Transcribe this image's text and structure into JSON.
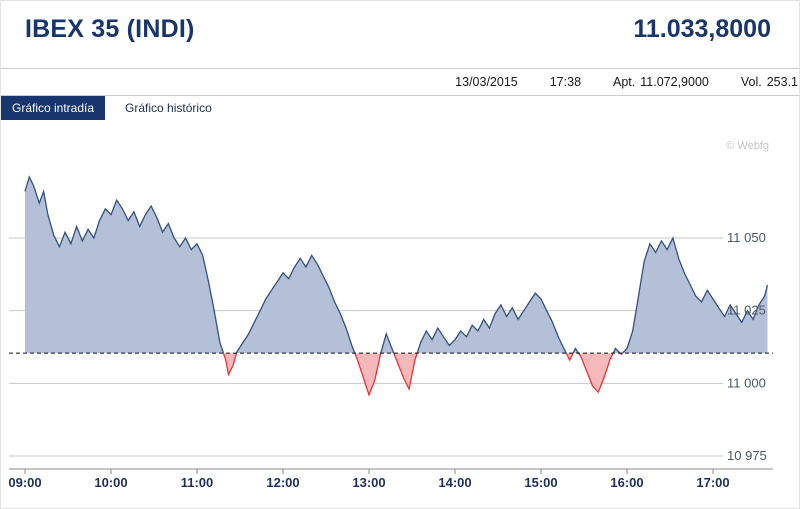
{
  "header": {
    "title": "IBEX 35 (INDI)",
    "last_price": "11.033,8000"
  },
  "info_bar": {
    "date": "13/03/2015",
    "time": "17:38",
    "open_label": "Apt.",
    "open_value": "11.072,9000",
    "volume_label": "Vol.",
    "volume_value": "253.1"
  },
  "tabs": [
    {
      "label": "Gráfico intradía",
      "active": true
    },
    {
      "label": "Gráfico histórico",
      "active": false
    }
  ],
  "watermark": "© Webfg",
  "chart_data": {
    "type": "area",
    "title": "",
    "xlabel": "",
    "ylabel": "",
    "x_range": [
      "09:00",
      "17:38"
    ],
    "ylim": [
      10965,
      11080
    ],
    "grid": true,
    "x_tick_labels": [
      "09:00",
      "10:00",
      "11:00",
      "12:00",
      "13:00",
      "14:00",
      "15:00",
      "16:00",
      "17:00"
    ],
    "y_ticks": [
      {
        "value": 11050,
        "label": "11 050"
      },
      {
        "value": 11025,
        "label": "11 025"
      },
      {
        "value": 11000,
        "label": "11 000"
      },
      {
        "value": 10975,
        "label": "10 975"
      }
    ],
    "baseline_previous_close": 11010.4,
    "colors": {
      "accent": "#17366e",
      "area_fill": "#b3c0d8",
      "area_stroke": "#33507e",
      "negative_fill": "#f6b9bb",
      "negative_stroke": "#e23535",
      "grid": "#c9c9c9",
      "baseline": "#111111",
      "axis": "#8a8a8a",
      "y_label": "#4d5766",
      "x_label": "#1d2f5f"
    },
    "series": [
      {
        "name": "IBEX 35",
        "points": [
          [
            "09:00",
            11066
          ],
          [
            "09:03",
            11071
          ],
          [
            "09:06",
            11068
          ],
          [
            "09:10",
            11062
          ],
          [
            "09:13",
            11066
          ],
          [
            "09:16",
            11058
          ],
          [
            "09:20",
            11051
          ],
          [
            "09:24",
            11047
          ],
          [
            "09:28",
            11052
          ],
          [
            "09:32",
            11048
          ],
          [
            "09:36",
            11054
          ],
          [
            "09:40",
            11049
          ],
          [
            "09:44",
            11053
          ],
          [
            "09:48",
            11050
          ],
          [
            "09:52",
            11056
          ],
          [
            "09:56",
            11060
          ],
          [
            "10:00",
            11058
          ],
          [
            "10:04",
            11063
          ],
          [
            "10:08",
            11060
          ],
          [
            "10:12",
            11056
          ],
          [
            "10:16",
            11059
          ],
          [
            "10:20",
            11054
          ],
          [
            "10:24",
            11058
          ],
          [
            "10:28",
            11061
          ],
          [
            "10:32",
            11057
          ],
          [
            "10:36",
            11052
          ],
          [
            "10:40",
            11055
          ],
          [
            "10:44",
            11050
          ],
          [
            "10:48",
            11047
          ],
          [
            "10:52",
            11050
          ],
          [
            "10:56",
            11046
          ],
          [
            "11:00",
            11048
          ],
          [
            "11:04",
            11044
          ],
          [
            "11:08",
            11035
          ],
          [
            "11:12",
            11025
          ],
          [
            "11:16",
            11014
          ],
          [
            "11:20",
            11008
          ],
          [
            "11:22",
            11003
          ],
          [
            "11:25",
            11006
          ],
          [
            "11:28",
            11011
          ],
          [
            "11:32",
            11014
          ],
          [
            "11:36",
            11017
          ],
          [
            "11:40",
            11021
          ],
          [
            "11:44",
            11025
          ],
          [
            "11:48",
            11029
          ],
          [
            "11:52",
            11032
          ],
          [
            "11:56",
            11035
          ],
          [
            "12:00",
            11038
          ],
          [
            "12:04",
            11036
          ],
          [
            "12:08",
            11040
          ],
          [
            "12:12",
            11043
          ],
          [
            "12:16",
            11040
          ],
          [
            "12:20",
            11044
          ],
          [
            "12:24",
            11041
          ],
          [
            "12:28",
            11037
          ],
          [
            "12:32",
            11033
          ],
          [
            "12:36",
            11028
          ],
          [
            "12:40",
            11024
          ],
          [
            "12:44",
            11019
          ],
          [
            "12:48",
            11013
          ],
          [
            "12:52",
            11008
          ],
          [
            "12:56",
            11002
          ],
          [
            "13:00",
            10996
          ],
          [
            "13:04",
            11001
          ],
          [
            "13:08",
            11010
          ],
          [
            "13:12",
            11017
          ],
          [
            "13:16",
            11012
          ],
          [
            "13:20",
            11007
          ],
          [
            "13:24",
            11002
          ],
          [
            "13:28",
            10998
          ],
          [
            "13:32",
            11008
          ],
          [
            "13:36",
            11014
          ],
          [
            "13:40",
            11018
          ],
          [
            "13:44",
            11015
          ],
          [
            "13:48",
            11019
          ],
          [
            "13:52",
            11016
          ],
          [
            "13:56",
            11013
          ],
          [
            "14:00",
            11015
          ],
          [
            "14:04",
            11018
          ],
          [
            "14:08",
            11016
          ],
          [
            "14:12",
            11020
          ],
          [
            "14:16",
            11018
          ],
          [
            "14:20",
            11022
          ],
          [
            "14:24",
            11019
          ],
          [
            "14:28",
            11024
          ],
          [
            "14:32",
            11027
          ],
          [
            "14:36",
            11023
          ],
          [
            "14:40",
            11026
          ],
          [
            "14:44",
            11022
          ],
          [
            "14:48",
            11025
          ],
          [
            "14:52",
            11028
          ],
          [
            "14:56",
            11031
          ],
          [
            "15:00",
            11029
          ],
          [
            "15:04",
            11025
          ],
          [
            "15:08",
            11021
          ],
          [
            "15:12",
            11016
          ],
          [
            "15:16",
            11012
          ],
          [
            "15:20",
            11008
          ],
          [
            "15:24",
            11012
          ],
          [
            "15:28",
            11009
          ],
          [
            "15:32",
            11004
          ],
          [
            "15:36",
            10999
          ],
          [
            "15:40",
            10997
          ],
          [
            "15:44",
            11002
          ],
          [
            "15:48",
            11008
          ],
          [
            "15:52",
            11012
          ],
          [
            "15:56",
            11010
          ],
          [
            "16:00",
            11012
          ],
          [
            "16:04",
            11018
          ],
          [
            "16:08",
            11030
          ],
          [
            "16:12",
            11042
          ],
          [
            "16:16",
            11048
          ],
          [
            "16:20",
            11045
          ],
          [
            "16:24",
            11049
          ],
          [
            "16:28",
            11046
          ],
          [
            "16:32",
            11050
          ],
          [
            "16:36",
            11043
          ],
          [
            "16:40",
            11038
          ],
          [
            "16:44",
            11034
          ],
          [
            "16:48",
            11030
          ],
          [
            "16:52",
            11028
          ],
          [
            "16:56",
            11032
          ],
          [
            "17:00",
            11029
          ],
          [
            "17:04",
            11026
          ],
          [
            "17:08",
            11023
          ],
          [
            "17:12",
            11027
          ],
          [
            "17:16",
            11024
          ],
          [
            "17:20",
            11021
          ],
          [
            "17:24",
            11025
          ],
          [
            "17:28",
            11022
          ],
          [
            "17:32",
            11027
          ],
          [
            "17:36",
            11030
          ],
          [
            "17:38",
            11033.8
          ]
        ]
      }
    ]
  }
}
